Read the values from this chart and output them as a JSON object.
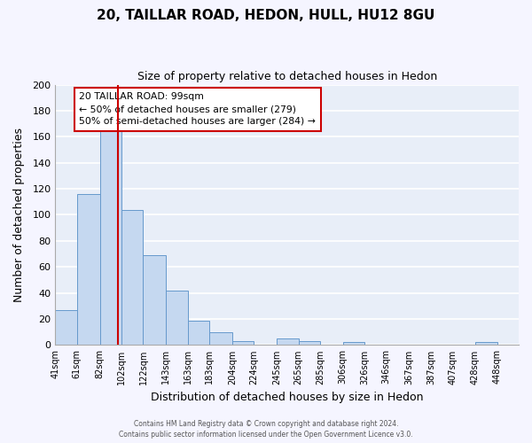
{
  "title": "20, TAILLAR ROAD, HEDON, HULL, HU12 8GU",
  "subtitle": "Size of property relative to detached houses in Hedon",
  "xlabel": "Distribution of detached houses by size in Hedon",
  "ylabel": "Number of detached properties",
  "bar_color": "#c5d8f0",
  "bar_edge_color": "#6699cc",
  "background_color": "#e8eef8",
  "grid_color": "#ffffff",
  "bin_labels": [
    "41sqm",
    "61sqm",
    "82sqm",
    "102sqm",
    "122sqm",
    "143sqm",
    "163sqm",
    "183sqm",
    "204sqm",
    "224sqm",
    "245sqm",
    "265sqm",
    "285sqm",
    "306sqm",
    "326sqm",
    "346sqm",
    "367sqm",
    "387sqm",
    "407sqm",
    "428sqm",
    "448sqm"
  ],
  "bin_edges": [
    41,
    61,
    82,
    102,
    122,
    143,
    163,
    183,
    204,
    224,
    245,
    265,
    285,
    306,
    326,
    346,
    367,
    387,
    407,
    428,
    448,
    468
  ],
  "bar_heights": [
    27,
    116,
    164,
    104,
    69,
    42,
    19,
    10,
    3,
    0,
    5,
    3,
    0,
    2,
    0,
    0,
    0,
    0,
    0,
    2,
    0
  ],
  "vline_x": 99,
  "vline_color": "#cc0000",
  "ylim": [
    0,
    200
  ],
  "yticks": [
    0,
    20,
    40,
    60,
    80,
    100,
    120,
    140,
    160,
    180,
    200
  ],
  "annotation_title": "20 TAILLAR ROAD: 99sqm",
  "annotation_line1": "← 50% of detached houses are smaller (279)",
  "annotation_line2": "50% of semi-detached houses are larger (284) →",
  "annotation_box_color": "#ffffff",
  "annotation_box_edge": "#cc0000",
  "footer1": "Contains HM Land Registry data © Crown copyright and database right 2024.",
  "footer2": "Contains public sector information licensed under the Open Government Licence v3.0."
}
